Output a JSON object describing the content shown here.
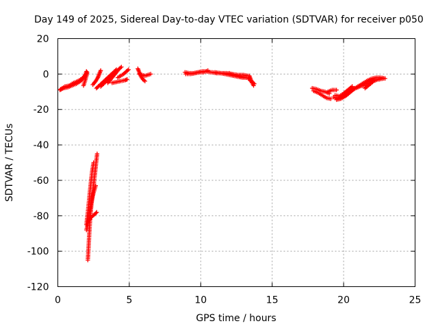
{
  "chart_data": {
    "type": "scatter",
    "title": "Day 149 of 2025, Sidereal Day-to-day VTEC variation (SDTVAR) for receiver p050",
    "xlabel": "GPS time / hours",
    "ylabel": "SDTVAR / TECUs",
    "xlim": [
      0,
      25
    ],
    "ylim": [
      -120,
      20
    ],
    "xticks": [
      0,
      5,
      10,
      15,
      20,
      25
    ],
    "yticks": [
      -120,
      -100,
      -80,
      -60,
      -40,
      -20,
      0,
      20
    ],
    "grid": true,
    "marker": "+",
    "color": "#ff0000",
    "series": [
      {
        "name": "SDTVAR",
        "segments": [
          [
            [
              0.15,
              -9
            ],
            [
              0.4,
              -8
            ],
            [
              0.7,
              -7.5
            ],
            [
              1.0,
              -6.5
            ],
            [
              1.3,
              -5.5
            ],
            [
              1.6,
              -4
            ],
            [
              1.8,
              -2
            ],
            [
              1.95,
              0
            ],
            [
              2.0,
              1.5
            ]
          ],
          [
            [
              0.2,
              -8.5
            ],
            [
              0.5,
              -7
            ],
            [
              0.8,
              -6.5
            ],
            [
              1.1,
              -5
            ],
            [
              1.4,
              -4
            ],
            [
              1.7,
              -2.5
            ],
            [
              1.9,
              -1
            ],
            [
              2.0,
              0.5
            ]
          ],
          [
            [
              1.8,
              -6.5
            ],
            [
              1.9,
              -4
            ],
            [
              2.0,
              -1
            ],
            [
              2.05,
              1
            ]
          ],
          [
            [
              2.45,
              -6
            ],
            [
              2.65,
              -4
            ],
            [
              2.8,
              -2
            ],
            [
              2.9,
              0
            ],
            [
              3.0,
              2
            ]
          ],
          [
            [
              2.7,
              -8
            ],
            [
              2.9,
              -6.5
            ],
            [
              3.1,
              -5
            ],
            [
              3.3,
              -3.5
            ],
            [
              3.5,
              -2
            ],
            [
              3.7,
              -0.5
            ],
            [
              3.9,
              1
            ],
            [
              4.1,
              2.5
            ]
          ],
          [
            [
              3.0,
              -7
            ],
            [
              3.2,
              -5.5
            ],
            [
              3.4,
              -4
            ],
            [
              3.6,
              -2.5
            ],
            [
              3.8,
              -1
            ],
            [
              4.0,
              0.5
            ]
          ],
          [
            [
              3.5,
              -5
            ],
            [
              3.7,
              -3
            ],
            [
              3.9,
              -1
            ],
            [
              4.1,
              1
            ],
            [
              4.3,
              3
            ],
            [
              4.45,
              4
            ]
          ],
          [
            [
              3.8,
              -5
            ],
            [
              4.1,
              -4.5
            ],
            [
              4.4,
              -4
            ],
            [
              4.7,
              -3.5
            ],
            [
              4.85,
              -3
            ]
          ],
          [
            [
              4.2,
              -2
            ],
            [
              4.4,
              -1
            ],
            [
              4.6,
              0
            ],
            [
              4.8,
              1.5
            ],
            [
              4.95,
              2.5
            ]
          ],
          [
            [
              2.1,
              -105
            ],
            [
              2.15,
              -98
            ],
            [
              2.2,
              -90
            ],
            [
              2.25,
              -83
            ],
            [
              2.32,
              -76
            ],
            [
              2.4,
              -70
            ],
            [
              2.5,
              -63
            ],
            [
              2.6,
              -56
            ],
            [
              2.68,
              -50
            ],
            [
              2.75,
              -45
            ]
          ],
          [
            [
              2.0,
              -85
            ],
            [
              2.1,
              -78
            ],
            [
              2.2,
              -70
            ],
            [
              2.3,
              -62
            ],
            [
              2.4,
              -55
            ],
            [
              2.5,
              -50
            ]
          ],
          [
            [
              2.0,
              -88
            ],
            [
              2.15,
              -83
            ],
            [
              2.3,
              -81
            ],
            [
              2.45,
              -80
            ],
            [
              2.6,
              -79
            ],
            [
              2.72,
              -78
            ]
          ],
          [
            [
              2.1,
              -84
            ],
            [
              2.2,
              -78
            ],
            [
              2.35,
              -72
            ],
            [
              2.5,
              -67
            ],
            [
              2.65,
              -63
            ]
          ],
          [
            [
              5.6,
              3
            ],
            [
              5.7,
              1
            ],
            [
              5.8,
              -1
            ],
            [
              5.95,
              -3
            ],
            [
              6.1,
              -4
            ]
          ],
          [
            [
              5.7,
              0
            ],
            [
              5.9,
              -0.5
            ],
            [
              6.1,
              -1
            ],
            [
              6.3,
              -0.5
            ],
            [
              6.5,
              0
            ]
          ],
          [
            [
              8.9,
              1
            ],
            [
              9.2,
              0.5
            ],
            [
              9.5,
              0.5
            ],
            [
              9.8,
              1
            ],
            [
              10.1,
              1.5
            ],
            [
              10.4,
              1.5
            ],
            [
              10.7,
              1
            ]
          ],
          [
            [
              8.95,
              0
            ],
            [
              9.3,
              0
            ],
            [
              9.6,
              0.5
            ],
            [
              9.9,
              1
            ],
            [
              10.2,
              1
            ],
            [
              10.5,
              2
            ]
          ],
          [
            [
              10.8,
              1
            ],
            [
              11.1,
              0.5
            ],
            [
              11.4,
              0.5
            ],
            [
              11.7,
              0
            ],
            [
              12.0,
              -0.5
            ],
            [
              12.3,
              -1
            ],
            [
              12.6,
              -1.5
            ],
            [
              12.9,
              -2
            ],
            [
              13.2,
              -2
            ]
          ],
          [
            [
              11.0,
              1
            ],
            [
              11.4,
              0.5
            ],
            [
              11.8,
              0.5
            ],
            [
              12.2,
              0
            ],
            [
              12.6,
              -0.5
            ],
            [
              13.0,
              -0.5
            ],
            [
              13.3,
              -1
            ]
          ],
          [
            [
              12.0,
              0.5
            ],
            [
              12.3,
              -0.5
            ],
            [
              12.6,
              -1
            ],
            [
              12.9,
              -1.5
            ],
            [
              13.2,
              -2
            ]
          ],
          [
            [
              13.4,
              -1
            ],
            [
              13.5,
              -3
            ],
            [
              13.6,
              -5
            ],
            [
              13.7,
              -6.5
            ]
          ],
          [
            [
              13.3,
              -2
            ],
            [
              13.45,
              -3.5
            ],
            [
              13.6,
              -4.5
            ],
            [
              13.75,
              -5.5
            ]
          ],
          [
            [
              17.8,
              -8
            ],
            [
              18.1,
              -8.5
            ],
            [
              18.4,
              -9.5
            ],
            [
              18.7,
              -10
            ],
            [
              19.0,
              -11
            ]
          ],
          [
            [
              17.9,
              -9.5
            ],
            [
              18.2,
              -10.5
            ],
            [
              18.5,
              -12
            ],
            [
              18.8,
              -13.5
            ],
            [
              19.1,
              -14
            ]
          ],
          [
            [
              18.9,
              -10
            ],
            [
              19.2,
              -9
            ],
            [
              19.5,
              -9
            ]
          ],
          [
            [
              19.3,
              -13
            ],
            [
              19.6,
              -14
            ],
            [
              19.9,
              -13.5
            ],
            [
              20.2,
              -12
            ],
            [
              20.5,
              -10
            ],
            [
              20.8,
              -8
            ],
            [
              21.1,
              -6.5
            ],
            [
              21.4,
              -5
            ],
            [
              21.7,
              -3.5
            ],
            [
              22.0,
              -2.5
            ],
            [
              22.3,
              -2
            ],
            [
              22.6,
              -2
            ],
            [
              22.9,
              -2.5
            ]
          ],
          [
            [
              19.5,
              -14.5
            ],
            [
              19.8,
              -14
            ],
            [
              20.1,
              -12.5
            ],
            [
              20.4,
              -10.5
            ],
            [
              20.7,
              -8.5
            ],
            [
              21.0,
              -7.5
            ],
            [
              21.3,
              -6
            ],
            [
              21.6,
              -4.5
            ],
            [
              21.9,
              -3.5
            ],
            [
              22.2,
              -3
            ],
            [
              22.5,
              -3
            ],
            [
              22.8,
              -2.5
            ]
          ],
          [
            [
              19.4,
              -12
            ],
            [
              19.7,
              -12.5
            ],
            [
              20.0,
              -11
            ],
            [
              20.3,
              -9
            ],
            [
              20.6,
              -7
            ]
          ],
          [
            [
              19.6,
              -13.5
            ],
            [
              19.9,
              -12.5
            ],
            [
              20.2,
              -11
            ],
            [
              20.5,
              -9.5
            ],
            [
              20.8,
              -8
            ],
            [
              21.1,
              -7
            ],
            [
              21.4,
              -6.5
            ],
            [
              21.7,
              -5
            ],
            [
              22.0,
              -3.5
            ]
          ],
          [
            [
              21.5,
              -8
            ],
            [
              21.8,
              -6
            ],
            [
              22.1,
              -4
            ],
            [
              22.4,
              -3
            ],
            [
              22.7,
              -2.5
            ]
          ]
        ]
      }
    ]
  }
}
